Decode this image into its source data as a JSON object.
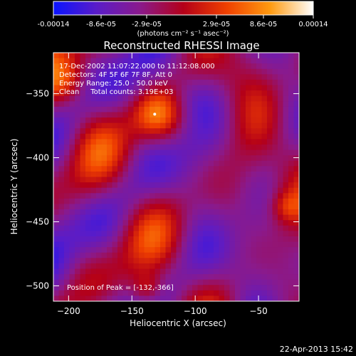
{
  "colorbar": {
    "tick_labels": [
      "-0.00014",
      "-8.6e-05",
      "-2.9e-05",
      "2.9e-05",
      "8.6e-05",
      "0.00014"
    ],
    "unit_label": "(photons cm⁻² s⁻¹ asec⁻²)",
    "stops": [
      "#0a14ff",
      "#5a1cc8",
      "#8a1a8c",
      "#b40018",
      "#f04000",
      "#ff9a10",
      "#ffffff"
    ]
  },
  "chart_data": {
    "type": "heatmap",
    "title": "Reconstructed RHESSI Image",
    "xlabel": "Heliocentric X (arcsec)",
    "ylabel": "Heliocentric Y (arcsec)",
    "xlim": [
      -212,
      -18
    ],
    "ylim": [
      -512,
      -318
    ],
    "x_ticks": [
      -200,
      -150,
      -100,
      -50
    ],
    "y_ticks": [
      -350,
      -400,
      -450,
      -500
    ],
    "x_tick_labels": [
      "−200",
      "−150",
      "−100",
      "−50"
    ],
    "y_tick_labels": [
      "−350",
      "−400",
      "−450",
      "−500"
    ],
    "annotations": [
      "17-Dec-2002 11:07:22.000 to 11:12:08.000",
      "Detectors: 4F 5F 6F 7F 8F, Att 0",
      "Energy Range: 25.0 - 50.0 keV",
      "Clean     Total counts: 3.19E+03",
      "Position of Peak = [-132,-366]"
    ],
    "peak": {
      "x": -132,
      "y": -366
    }
  },
  "footer": {
    "date": "22-Apr-2013 15:42"
  }
}
